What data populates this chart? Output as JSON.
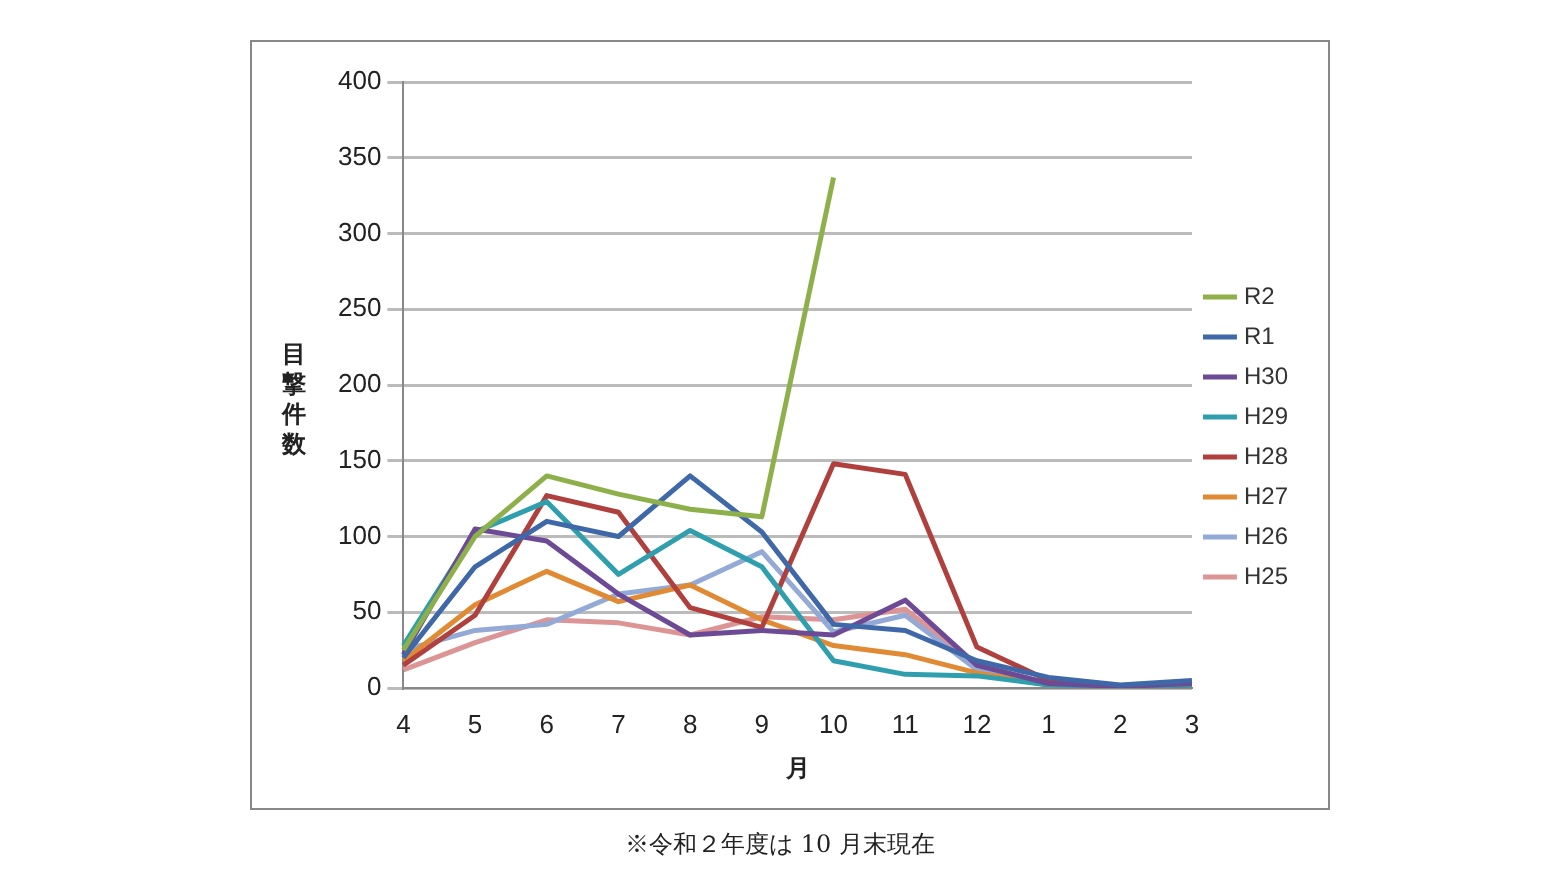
{
  "chart_data": {
    "type": "line",
    "xlabel": "月",
    "ylabel": "目撃件数",
    "categories": [
      "4",
      "5",
      "6",
      "7",
      "8",
      "9",
      "10",
      "11",
      "12",
      "1",
      "2",
      "3"
    ],
    "series": [
      {
        "name": "R2",
        "color": "#8db04a",
        "values": [
          25,
          100,
          140,
          128,
          118,
          113,
          337,
          null,
          null,
          null,
          null,
          null
        ]
      },
      {
        "name": "R1",
        "color": "#3f68a8",
        "values": [
          20,
          80,
          110,
          100,
          140,
          103,
          42,
          38,
          18,
          7,
          2,
          5
        ]
      },
      {
        "name": "H30",
        "color": "#6d4a96",
        "values": [
          22,
          105,
          97,
          62,
          35,
          38,
          35,
          58,
          15,
          3,
          1,
          3
        ]
      },
      {
        "name": "H29",
        "color": "#2f9fae",
        "values": [
          28,
          103,
          123,
          75,
          104,
          80,
          18,
          9,
          8,
          2,
          1,
          2
        ]
      },
      {
        "name": "H28",
        "color": "#b0403d",
        "values": [
          15,
          48,
          127,
          116,
          53,
          40,
          148,
          141,
          27,
          5,
          1,
          2
        ]
      },
      {
        "name": "H27",
        "color": "#e08a33",
        "values": [
          18,
          55,
          77,
          57,
          68,
          45,
          28,
          22,
          10,
          2,
          1,
          1
        ]
      },
      {
        "name": "H26",
        "color": "#93a9d6",
        "values": [
          25,
          38,
          42,
          62,
          68,
          90,
          37,
          48,
          12,
          2,
          1,
          1
        ]
      },
      {
        "name": "H25",
        "color": "#dc9495",
        "values": [
          12,
          30,
          45,
          43,
          35,
          47,
          45,
          52,
          15,
          3,
          1,
          1
        ]
      }
    ],
    "ylim": [
      0,
      400
    ],
    "yticks": [
      0,
      50,
      100,
      150,
      200,
      250,
      300,
      350,
      400
    ],
    "grid": "y",
    "legend": "right",
    "marker": "none",
    "line_style": "solid",
    "annotations": [
      "※令和２年度は 10 月末現在"
    ]
  }
}
